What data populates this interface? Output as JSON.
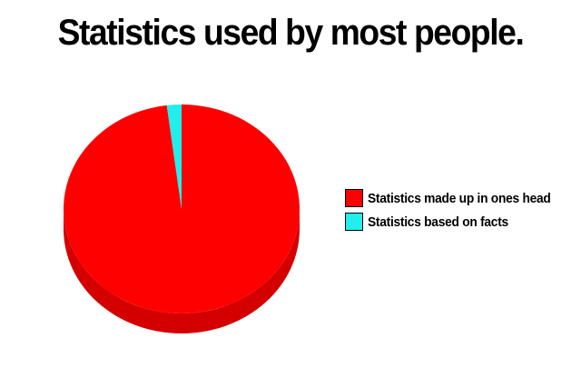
{
  "chart_data": {
    "type": "pie",
    "title": "Statistics used by most people.",
    "slices": [
      {
        "label": "Statistics made up in ones head",
        "value": 98,
        "color": "#ff0000",
        "shade": "#d40000"
      },
      {
        "label": "Statistics based on facts",
        "value": 2,
        "color": "#22eeee",
        "shade": "#10b8b8"
      }
    ],
    "legend_position": "right"
  }
}
